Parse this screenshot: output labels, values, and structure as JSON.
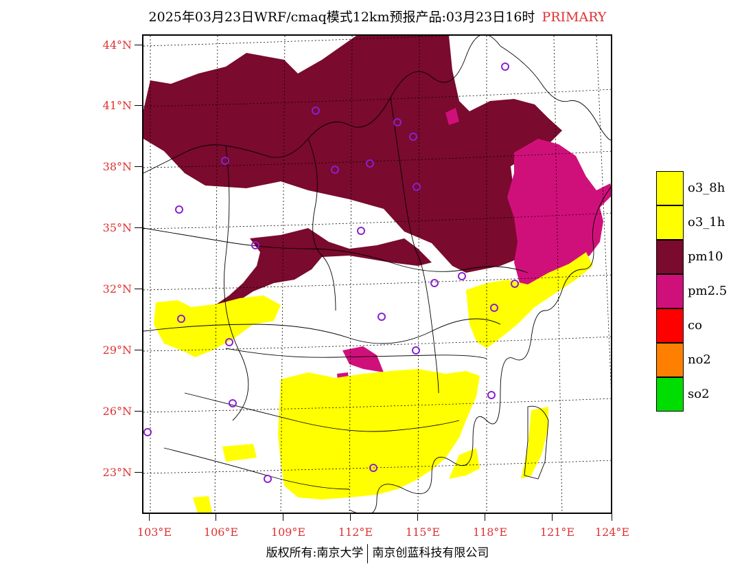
{
  "header": {
    "title": "2025年03月23日WRF/cmaq模式12km预报产品:03月23日16时",
    "tag": "PRIMARY",
    "tag_color": "#e03030"
  },
  "axes": {
    "lat_labels": [
      "44°N",
      "41°N",
      "38°N",
      "35°N",
      "32°N",
      "29°N",
      "26°N",
      "23°N"
    ],
    "lon_labels": [
      "103°E",
      "106°E",
      "109°E",
      "112°E",
      "115°E",
      "118°E",
      "121°E",
      "124°E"
    ],
    "label_color": "#e03030"
  },
  "legend": {
    "items": [
      {
        "label": "o3_8h",
        "color": "#ffff00"
      },
      {
        "label": "o3_1h",
        "color": "#ffff00"
      },
      {
        "label": "pm10",
        "color": "#7a0a2e"
      },
      {
        "label": "pm2.5",
        "color": "#d0107a"
      },
      {
        "label": "co",
        "color": "#ff0000"
      },
      {
        "label": "no2",
        "color": "#ff8000"
      },
      {
        "label": "so2",
        "color": "#00dd00"
      }
    ]
  },
  "footer": {
    "left": "版权所有:南京大学",
    "right": "南京创蓝科技有限公司"
  },
  "colors": {
    "pm10": "#7a0a2e",
    "pm25": "#d0107a",
    "o3": "#ffff00",
    "station": "#8a20d0"
  }
}
